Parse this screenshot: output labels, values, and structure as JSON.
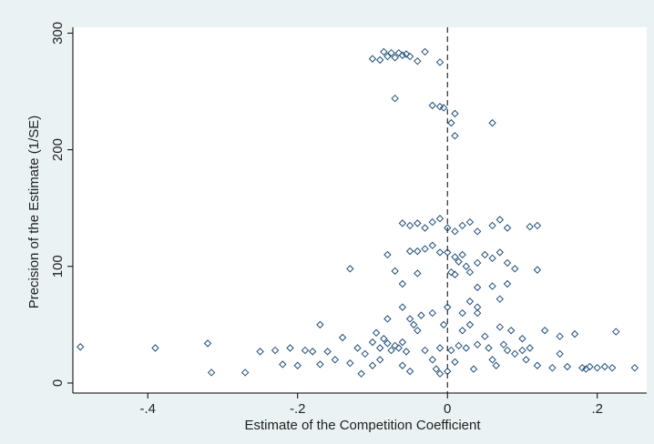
{
  "chart_data": {
    "type": "scatter",
    "x_label": "Estimate of the Competition Coefficient",
    "y_label": "Precision of the Estimate (1/SE)",
    "xlim": [
      -0.5,
      0.266
    ],
    "ylim": [
      -8.6,
      305
    ],
    "xticks": [
      {
        "value": -0.4,
        "label": "-.4"
      },
      {
        "value": -0.2,
        "label": "-.2"
      },
      {
        "value": 0,
        "label": "0"
      },
      {
        "value": 0.2,
        "label": ".2"
      }
    ],
    "yticks": [
      0,
      100,
      200,
      300
    ],
    "xline": 0,
    "grid": false,
    "series": [
      {
        "color": "#1f4e79",
        "x": [
          -0.1,
          -0.09,
          -0.085,
          -0.08,
          -0.075,
          -0.07,
          -0.065,
          -0.06,
          -0.055,
          -0.05,
          -0.04,
          -0.03,
          -0.01,
          -0.07,
          -0.02,
          -0.01,
          -0.005,
          0.01,
          0.005,
          0.01,
          0.06,
          -0.06,
          -0.05,
          -0.04,
          -0.03,
          -0.02,
          -0.01,
          0,
          0.01,
          0.02,
          0.03,
          0.04,
          0.06,
          0.07,
          0.08,
          0.11,
          0.12,
          -0.05,
          -0.04,
          -0.03,
          -0.02,
          -0.01,
          0,
          0.01,
          0.015,
          0.02,
          0.025,
          0.03,
          0.04,
          0.05,
          0.06,
          0.07,
          0.08,
          0.09,
          0.12,
          -0.08,
          -0.07,
          -0.13,
          -0.04,
          0.005,
          0.01,
          -0.06,
          0.04,
          0.06,
          0.08,
          0.07,
          0.03,
          -0.02,
          0,
          0.02,
          0.04,
          -0.49,
          -0.39,
          -0.32,
          -0.315,
          -0.27,
          -0.25,
          -0.23,
          -0.22,
          -0.21,
          -0.19,
          -0.18,
          -0.17,
          -0.16,
          -0.15,
          -0.14,
          -0.13,
          -0.12,
          -0.11,
          -0.1,
          -0.1,
          -0.095,
          -0.09,
          -0.085,
          -0.08,
          -0.075,
          -0.07,
          -0.065,
          -0.06,
          -0.055,
          -0.05,
          -0.045,
          -0.04,
          -0.035,
          -0.03,
          -0.02,
          -0.015,
          -0.01,
          -0.005,
          0.005,
          0.01,
          0.015,
          0.02,
          0.025,
          0.03,
          0.035,
          0.04,
          0.05,
          0.055,
          0.06,
          0.065,
          0.07,
          0.075,
          0.08,
          0.085,
          0.09,
          0.1,
          0.105,
          0.11,
          0.12,
          0.13,
          0.14,
          0.15,
          0.16,
          0.17,
          0.18,
          0.185,
          0.19,
          0.2,
          0.21,
          0.22,
          0.225,
          0.25,
          -0.08,
          -0.09,
          -0.06,
          -0.2,
          -0.05,
          0,
          -0.01,
          -0.115,
          0.1,
          0.15,
          -0.06,
          0.04,
          -0.17
        ],
        "y": [
          278,
          277,
          284,
          280,
          283,
          279,
          283,
          281,
          282,
          280,
          276,
          284,
          275,
          244,
          238,
          237,
          236,
          231,
          223,
          212,
          223,
          137,
          135,
          137,
          133,
          138,
          141,
          133,
          130,
          135,
          138,
          130,
          135,
          140,
          133,
          134,
          135,
          113,
          113,
          115,
          118,
          112,
          112,
          108,
          104,
          110,
          100,
          95,
          103,
          110,
          107,
          112,
          103,
          98,
          97,
          110,
          96,
          98,
          94,
          95,
          93,
          85,
          82,
          83,
          85,
          72,
          70,
          60,
          65,
          60,
          60,
          31,
          30,
          34,
          9,
          9,
          27,
          28,
          16,
          30,
          28,
          27,
          16,
          27,
          20,
          39,
          17,
          30,
          25,
          35,
          15,
          43,
          30,
          38,
          34,
          28,
          32,
          30,
          35,
          27,
          55,
          50,
          45,
          58,
          28,
          20,
          12,
          30,
          50,
          28,
          18,
          32,
          45,
          30,
          50,
          12,
          33,
          40,
          30,
          20,
          15,
          48,
          33,
          28,
          45,
          25,
          38,
          20,
          30,
          15,
          45,
          13,
          40,
          14,
          42,
          13,
          12,
          14,
          13,
          14,
          13,
          44,
          13,
          55,
          20,
          15,
          15,
          10,
          10,
          8,
          8,
          28,
          25,
          65,
          65,
          50
        ]
      }
    ]
  }
}
